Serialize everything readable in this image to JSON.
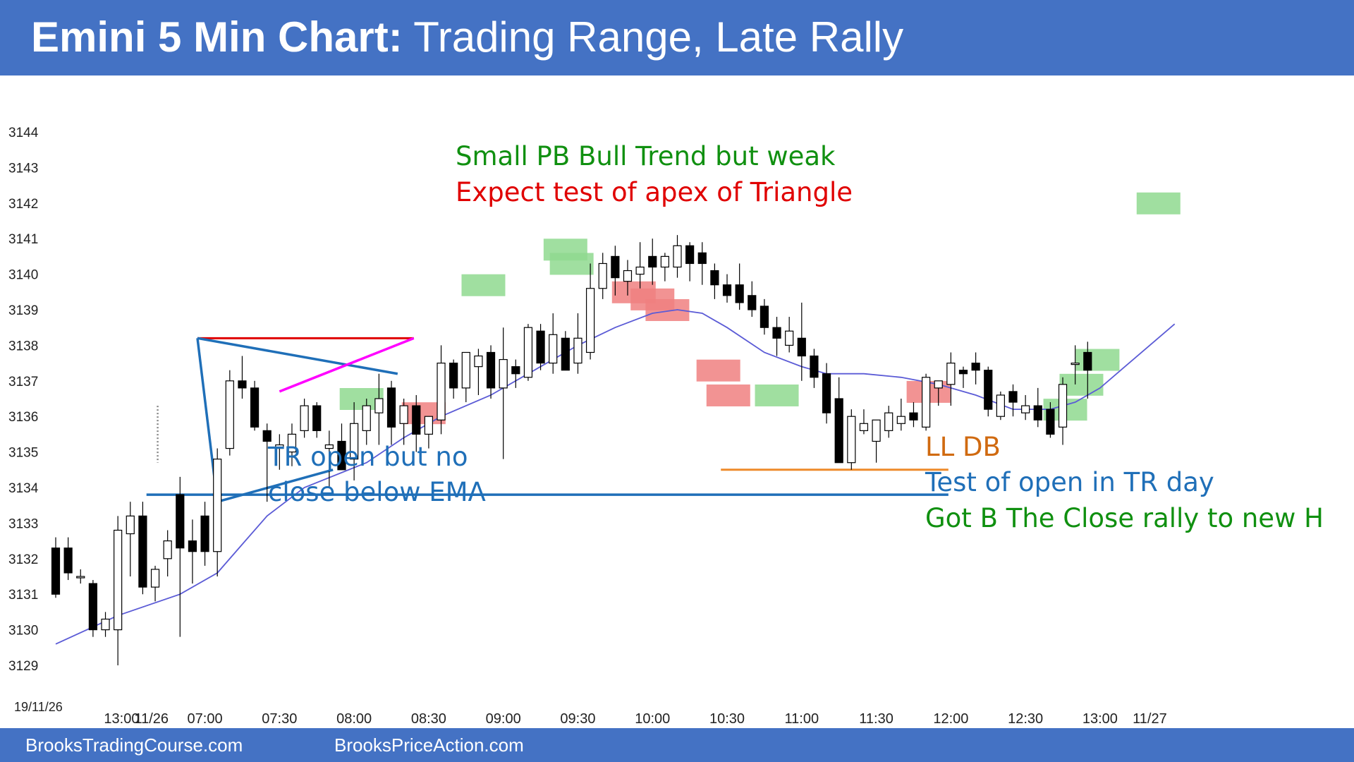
{
  "header": {
    "title_bold": "Emini 5 Min Chart:",
    "title_rest": " Trading Range, Late Rally"
  },
  "footer": {
    "left": "BrooksTradingCourse.com",
    "right": "BrooksPriceAction.com"
  },
  "colors": {
    "header_bg": "#4472c4",
    "bull_bar": "#ffffff",
    "bear_bar": "#000000",
    "ema": "#5b5bd6",
    "green_highlight": "#8fd98f",
    "red_highlight": "#f08080",
    "support_line": "#1f6fb8",
    "ll_db_line": "#ee8a2a",
    "triangle_top": "#e00000",
    "triangle_mid": "#1f6fb8",
    "triangle_magenta": "#ff00ff"
  },
  "chart_data": {
    "type": "candlestick",
    "title": "Emini 5 Min Chart: Trading Range, Late Rally",
    "date_label": "19/11/26",
    "ylim": [
      3128.6,
      3144.3
    ],
    "y_ticks": [
      3129,
      3130,
      3131,
      3132,
      3133,
      3134,
      3135,
      3136,
      3137,
      3138,
      3139,
      3140,
      3141,
      3142,
      3143,
      3144
    ],
    "x_ticks": [
      {
        "i": 5.3,
        "label": "13:00"
      },
      {
        "i": 7.7,
        "label": "11/26"
      },
      {
        "i": 12,
        "label": "07:00"
      },
      {
        "i": 18,
        "label": "07:30"
      },
      {
        "i": 24,
        "label": "08:00"
      },
      {
        "i": 30,
        "label": "08:30"
      },
      {
        "i": 36,
        "label": "09:00"
      },
      {
        "i": 42,
        "label": "09:30"
      },
      {
        "i": 48,
        "label": "10:00"
      },
      {
        "i": 54,
        "label": "10:30"
      },
      {
        "i": 60,
        "label": "11:00"
      },
      {
        "i": 66,
        "label": "11:30"
      },
      {
        "i": 72,
        "label": "12:00"
      },
      {
        "i": 78,
        "label": "12:30"
      },
      {
        "i": 84,
        "label": "13:00"
      },
      {
        "i": 88,
        "label": "11/27"
      }
    ],
    "bars": [
      [
        3132.3,
        3132.6,
        3130.9,
        3131.0
      ],
      [
        3132.3,
        3132.6,
        3131.4,
        3131.6
      ],
      [
        3131.5,
        3131.7,
        3131.3,
        3131.5
      ],
      [
        3131.3,
        3131.4,
        3129.8,
        3130.0
      ],
      [
        3130.0,
        3130.5,
        3129.8,
        3130.3
      ],
      [
        3130.0,
        3133.2,
        3129.0,
        3132.8
      ],
      [
        3132.7,
        3133.6,
        3131.5,
        3133.2
      ],
      [
        3133.2,
        3133.6,
        3131.0,
        3131.2
      ],
      [
        3131.2,
        3131.8,
        3130.8,
        3131.7
      ],
      [
        3132.0,
        3132.8,
        3131.5,
        3132.5
      ],
      [
        3133.8,
        3134.3,
        3129.8,
        3132.3
      ],
      [
        3132.5,
        3133.1,
        3131.3,
        3132.2
      ],
      [
        3133.2,
        3133.6,
        3131.8,
        3132.2
      ],
      [
        3132.2,
        3135.1,
        3131.5,
        3134.8
      ],
      [
        3135.1,
        3137.3,
        3134.9,
        3137.0
      ],
      [
        3137.0,
        3137.7,
        3136.5,
        3136.8
      ],
      [
        3136.8,
        3137.0,
        3135.6,
        3135.7
      ],
      [
        3135.6,
        3135.8,
        3133.6,
        3135.3
      ],
      [
        3135.1,
        3135.5,
        3134.5,
        3135.2
      ],
      [
        3135.0,
        3135.8,
        3134.6,
        3135.5
      ],
      [
        3135.6,
        3136.5,
        3135.4,
        3136.3
      ],
      [
        3136.3,
        3136.4,
        3135.4,
        3135.6
      ],
      [
        3135.1,
        3135.6,
        3134.0,
        3135.2
      ],
      [
        3135.3,
        3135.8,
        3134.8,
        3134.5
      ],
      [
        3134.8,
        3136.4,
        3134.2,
        3135.8
      ],
      [
        3135.6,
        3136.5,
        3135.2,
        3136.3
      ],
      [
        3136.1,
        3137.2,
        3135.2,
        3136.5
      ],
      [
        3136.8,
        3137.0,
        3135.2,
        3135.7
      ],
      [
        3135.8,
        3136.5,
        3135.2,
        3136.3
      ],
      [
        3136.3,
        3136.6,
        3135.0,
        3135.5
      ],
      [
        3135.5,
        3136.0,
        3135.1,
        3136.0
      ],
      [
        3135.9,
        3138.0,
        3135.5,
        3137.5
      ],
      [
        3137.5,
        3137.6,
        3136.5,
        3136.8
      ],
      [
        3136.8,
        3137.8,
        3136.4,
        3137.8
      ],
      [
        3137.4,
        3137.9,
        3136.6,
        3137.7
      ],
      [
        3137.8,
        3138.0,
        3136.5,
        3136.8
      ],
      [
        3136.8,
        3138.5,
        3134.8,
        3137.6
      ],
      [
        3137.4,
        3137.6,
        3136.8,
        3137.2
      ],
      [
        3137.1,
        3138.6,
        3137.0,
        3138.5
      ],
      [
        3138.4,
        3138.6,
        3137.3,
        3137.5
      ],
      [
        3137.5,
        3138.9,
        3137.2,
        3138.3
      ],
      [
        3138.2,
        3138.4,
        3137.3,
        3137.3
      ],
      [
        3137.5,
        3138.9,
        3137.2,
        3138.2
      ],
      [
        3137.8,
        3140.3,
        3137.6,
        3139.6
      ],
      [
        3139.6,
        3140.6,
        3139.3,
        3140.3
      ],
      [
        3140.5,
        3140.8,
        3139.4,
        3139.9
      ],
      [
        3139.8,
        3140.4,
        3139.4,
        3140.1
      ],
      [
        3140.0,
        3140.9,
        3139.6,
        3140.2
      ],
      [
        3140.5,
        3141.0,
        3139.7,
        3140.2
      ],
      [
        3140.2,
        3140.6,
        3139.8,
        3140.5
      ],
      [
        3140.2,
        3141.1,
        3139.9,
        3140.8
      ],
      [
        3140.8,
        3140.9,
        3139.8,
        3140.3
      ],
      [
        3140.6,
        3140.9,
        3139.7,
        3140.3
      ],
      [
        3140.1,
        3140.3,
        3139.3,
        3139.7
      ],
      [
        3139.7,
        3140.0,
        3139.2,
        3139.4
      ],
      [
        3139.7,
        3140.3,
        3139.0,
        3139.2
      ],
      [
        3139.4,
        3139.8,
        3138.8,
        3139.0
      ],
      [
        3139.1,
        3139.3,
        3138.3,
        3138.5
      ],
      [
        3138.5,
        3138.8,
        3137.7,
        3138.2
      ],
      [
        3138.0,
        3138.8,
        3137.8,
        3138.4
      ],
      [
        3138.2,
        3139.2,
        3137.0,
        3137.7
      ],
      [
        3137.7,
        3137.9,
        3136.8,
        3137.1
      ],
      [
        3137.2,
        3137.5,
        3135.8,
        3136.1
      ],
      [
        3136.5,
        3137.1,
        3134.7,
        3134.7
      ],
      [
        3134.7,
        3136.2,
        3134.5,
        3136.0
      ],
      [
        3135.6,
        3136.2,
        3135.5,
        3135.8
      ],
      [
        3135.3,
        3135.7,
        3134.7,
        3135.9
      ],
      [
        3135.6,
        3136.3,
        3135.4,
        3136.1
      ],
      [
        3135.8,
        3136.5,
        3135.6,
        3136.0
      ],
      [
        3136.1,
        3136.4,
        3135.7,
        3135.9
      ],
      [
        3135.7,
        3137.2,
        3135.6,
        3137.1
      ],
      [
        3136.8,
        3137.0,
        3136.3,
        3137.0
      ],
      [
        3136.9,
        3137.8,
        3136.3,
        3137.5
      ],
      [
        3137.3,
        3137.4,
        3136.8,
        3137.2
      ],
      [
        3137.5,
        3137.8,
        3136.9,
        3137.3
      ],
      [
        3137.3,
        3137.4,
        3136.0,
        3136.2
      ],
      [
        3136.0,
        3136.7,
        3135.9,
        3136.6
      ],
      [
        3136.7,
        3136.9,
        3136.0,
        3136.4
      ],
      [
        3136.1,
        3136.6,
        3135.9,
        3136.3
      ],
      [
        3136.3,
        3136.8,
        3135.7,
        3135.9
      ],
      [
        3136.2,
        3136.4,
        3135.4,
        3135.5
      ],
      [
        3135.7,
        3137.1,
        3135.2,
        3136.9
      ],
      [
        3137.5,
        3138.0,
        3136.9,
        3137.5
      ],
      [
        3137.8,
        3138.1,
        3136.5,
        3137.3
      ]
    ],
    "ema": [
      [
        0,
        3129.6
      ],
      [
        5,
        3130.4
      ],
      [
        10,
        3131.0
      ],
      [
        13,
        3131.6
      ],
      [
        15,
        3132.4
      ],
      [
        17,
        3133.2
      ],
      [
        20,
        3134.0
      ],
      [
        25,
        3134.7
      ],
      [
        28,
        3135.4
      ],
      [
        31,
        3136.0
      ],
      [
        35,
        3136.6
      ],
      [
        38,
        3137.2
      ],
      [
        42,
        3138.0
      ],
      [
        45,
        3138.5
      ],
      [
        48,
        3138.9
      ],
      [
        50,
        3139.0
      ],
      [
        52,
        3138.9
      ],
      [
        54,
        3138.5
      ],
      [
        57,
        3137.8
      ],
      [
        60,
        3137.4
      ],
      [
        62,
        3137.2
      ],
      [
        65,
        3137.2
      ],
      [
        68,
        3137.1
      ],
      [
        71,
        3136.9
      ],
      [
        74,
        3136.6
      ],
      [
        77,
        3136.2
      ],
      [
        80,
        3136.2
      ],
      [
        82,
        3136.4
      ],
      [
        84,
        3136.8
      ],
      [
        86,
        3137.4
      ],
      [
        88,
        3138.0
      ],
      [
        90,
        3138.6
      ]
    ],
    "green_highlights": [
      [
        24.6,
        3136.5
      ],
      [
        34.4,
        3139.7
      ],
      [
        41.5,
        3140.3
      ],
      [
        41.0,
        3140.7
      ],
      [
        58.0,
        3136.6
      ],
      [
        81.2,
        3136.2
      ],
      [
        82.5,
        3136.9
      ],
      [
        83.8,
        3137.6
      ],
      [
        88.7,
        3142.0
      ]
    ],
    "red_highlights": [
      [
        29.6,
        3136.1
      ],
      [
        46.5,
        3139.5
      ],
      [
        48.0,
        3139.3
      ],
      [
        49.2,
        3139.0
      ],
      [
        53.3,
        3137.3
      ],
      [
        54.1,
        3136.6
      ],
      [
        70.2,
        3136.7
      ]
    ],
    "lines": {
      "support": {
        "y": 3133.8,
        "x_from": 7.3,
        "x_to": 71.8
      },
      "ll_db": {
        "y": 3134.5,
        "x_from": 53.5,
        "x_to": 71.8
      },
      "triangle_top": {
        "y": 3138.2,
        "x_from": 11.4,
        "x_to": 28.8
      },
      "triangle_desc": [
        [
          11.4,
          3138.2
        ],
        [
          27.5,
          3137.2
        ]
      ],
      "triangle_asc": [
        [
          13.0,
          3133.6
        ],
        [
          22.3,
          3134.5
        ]
      ],
      "triangle_diag": [
        [
          11.4,
          3138.2
        ],
        [
          13.0,
          3133.6
        ]
      ],
      "magenta": [
        [
          18.0,
          3136.7
        ],
        [
          28.8,
          3138.2
        ]
      ]
    },
    "annotations": [
      {
        "text": "Small PB Bull Trend but weak",
        "color": "#109010"
      },
      {
        "text": "Expect test of apex of Triangle",
        "color": "#e00000"
      },
      {
        "text": "TR open but no",
        "color": "#1f6fb8"
      },
      {
        "text": "close below EMA",
        "color": "#1f6fb8"
      },
      {
        "text": "LL DB",
        "color": "#d06a10"
      },
      {
        "text": "Test of open in TR day",
        "color": "#1f6fb8"
      },
      {
        "text": "Got B The Close rally to new H",
        "color": "#109010"
      }
    ]
  }
}
